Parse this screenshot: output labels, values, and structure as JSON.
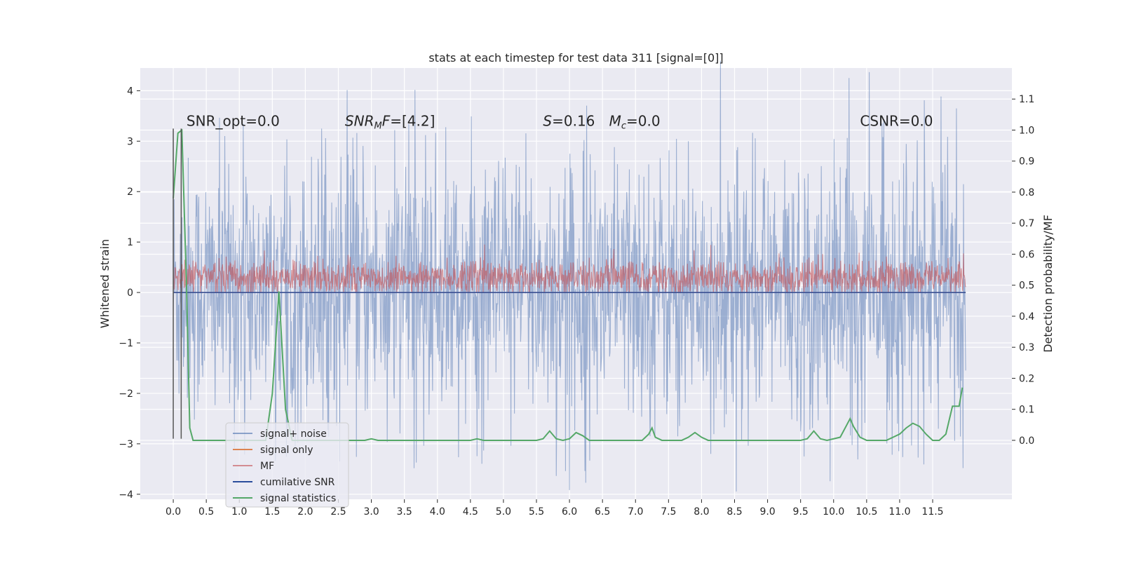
{
  "chart_data": {
    "type": "line",
    "title": "stats at each timestep for test data 311 [signal=[0]]",
    "xlabel": "",
    "ylabel": "Whitened strain",
    "y2label": "Detection probability/MF",
    "xlim": [
      -0.5,
      12.7
    ],
    "ylim": [
      -4.1,
      4.45
    ],
    "y2lim": [
      -0.19,
      1.2
    ],
    "x_ticks": [
      0.0,
      0.5,
      1.0,
      1.5,
      2.0,
      2.5,
      3.0,
      3.5,
      4.0,
      4.5,
      5.0,
      5.5,
      6.0,
      6.5,
      7.0,
      7.5,
      8.0,
      8.5,
      9.0,
      9.5,
      10.0,
      10.5,
      11.0,
      11.5
    ],
    "x_tick_labels": [
      "0.0",
      "0.5",
      "1.0",
      "1.5",
      "2.0",
      "2.5",
      "3.0",
      "3.5",
      "4.0",
      "4.5",
      "5.0",
      "5.5",
      "6.0",
      "6.5",
      "7.0",
      "7.5",
      "8.0",
      "8.5",
      "9.0",
      "9.5",
      "10.0",
      "10.5",
      "11.0",
      "11.5"
    ],
    "y_ticks": [
      -4,
      -3,
      -2,
      -1,
      0,
      1,
      2,
      3,
      4
    ],
    "y_tick_labels": [
      "−4",
      "−3",
      "−2",
      "−1",
      "0",
      "1",
      "2",
      "3",
      "4"
    ],
    "y2_ticks": [
      0.0,
      0.1,
      0.2,
      0.3,
      0.4,
      0.5,
      0.6,
      0.7,
      0.8,
      0.9,
      1.0,
      1.1
    ],
    "y2_tick_labels": [
      "0.0",
      "0.1",
      "0.2",
      "0.3",
      "0.4",
      "0.5",
      "0.6",
      "0.7",
      "0.8",
      "0.9",
      "1.0",
      "1.1"
    ],
    "grid": true,
    "legend_position": "lower-left",
    "series": [
      {
        "name": "signal+ noise",
        "axis": "left",
        "style": "noise",
        "x_range": [
          0.0,
          12.0
        ],
        "y_band": [
          -2.3,
          2.4
        ],
        "color": "#4c72b0"
      },
      {
        "name": "signal only",
        "axis": "left",
        "style": "flat",
        "x": [
          0.0,
          12.0
        ],
        "y": [
          0.0,
          0.0
        ],
        "color": "#dd8452"
      },
      {
        "name": "MF",
        "axis": "left",
        "style": "noise",
        "x_range": [
          0.0,
          12.0
        ],
        "y_band": [
          0.0,
          0.75
        ],
        "color": "#c44e52"
      },
      {
        "name": "cumilative SNR",
        "axis": "left",
        "style": "flat",
        "x": [
          0.0,
          12.0
        ],
        "y": [
          0.0,
          0.0
        ],
        "color": "#2a4d9c"
      },
      {
        "name": "signal statistics",
        "axis": "right",
        "color": "#55a868",
        "x": [
          0.0,
          0.07,
          0.13,
          0.2,
          0.25,
          0.3,
          0.5,
          1.0,
          1.4,
          1.5,
          1.6,
          1.7,
          1.8,
          2.0,
          2.5,
          2.9,
          3.0,
          3.1,
          4.0,
          4.5,
          4.6,
          4.7,
          5.0,
          5.5,
          5.6,
          5.7,
          5.8,
          5.9,
          6.0,
          6.1,
          6.2,
          6.3,
          6.4,
          7.0,
          7.1,
          7.2,
          7.25,
          7.3,
          7.4,
          7.5,
          7.7,
          7.8,
          7.9,
          8.0,
          8.1,
          8.5,
          8.9,
          9.0,
          9.3,
          9.5,
          9.6,
          9.7,
          9.8,
          9.9,
          10.0,
          10.1,
          10.2,
          10.25,
          10.3,
          10.4,
          10.5,
          10.6,
          10.8,
          10.9,
          11.0,
          11.1,
          11.2,
          11.3,
          11.4,
          11.5,
          11.6,
          11.7,
          11.8,
          11.85,
          11.9,
          11.95
        ],
        "y": [
          0.78,
          0.99,
          1.0,
          0.5,
          0.04,
          0.0,
          0.0,
          0.0,
          0.0,
          0.15,
          0.48,
          0.1,
          0.0,
          0.0,
          0.0,
          0.0,
          0.005,
          0.0,
          0.0,
          0.0,
          0.005,
          0.0,
          0.0,
          0.0,
          0.005,
          0.03,
          0.005,
          0.0,
          0.005,
          0.025,
          0.015,
          0.0,
          0.0,
          0.0,
          0.0,
          0.02,
          0.04,
          0.01,
          0.0,
          0.0,
          0.0,
          0.01,
          0.025,
          0.01,
          0.0,
          0.0,
          0.0,
          0.0,
          0.0,
          0.0,
          0.005,
          0.03,
          0.005,
          0.0,
          0.005,
          0.01,
          0.05,
          0.07,
          0.045,
          0.01,
          0.0,
          0.0,
          0.0,
          0.01,
          0.02,
          0.04,
          0.055,
          0.045,
          0.02,
          0.0,
          0.0,
          0.02,
          0.11,
          0.11,
          0.11,
          0.17
        ]
      }
    ],
    "vlines": [
      {
        "x": 0.0,
        "y_range": [
          -2.9,
          3.25
        ],
        "color": "#555555"
      },
      {
        "x": 0.12,
        "y_range": [
          -2.9,
          3.25
        ],
        "color": "#555555"
      }
    ],
    "annotations": [
      {
        "text": "SNR_opt=0.0",
        "x": 0.2,
        "y": 3.3
      },
      {
        "text": "SNR",
        "sub": "M",
        "tail": "F=[4.2]",
        "italic": true,
        "x": 2.6,
        "y": 3.3
      },
      {
        "text": "S=0.16",
        "italic_prefix": "S",
        "x": 5.6,
        "y": 3.3
      },
      {
        "text": "M",
        "sub": "c",
        "tail": "=0.0",
        "italic": true,
        "x": 6.6,
        "y": 3.3
      },
      {
        "text": "CSNR=0.0",
        "x": 10.4,
        "y": 3.3
      }
    ]
  }
}
